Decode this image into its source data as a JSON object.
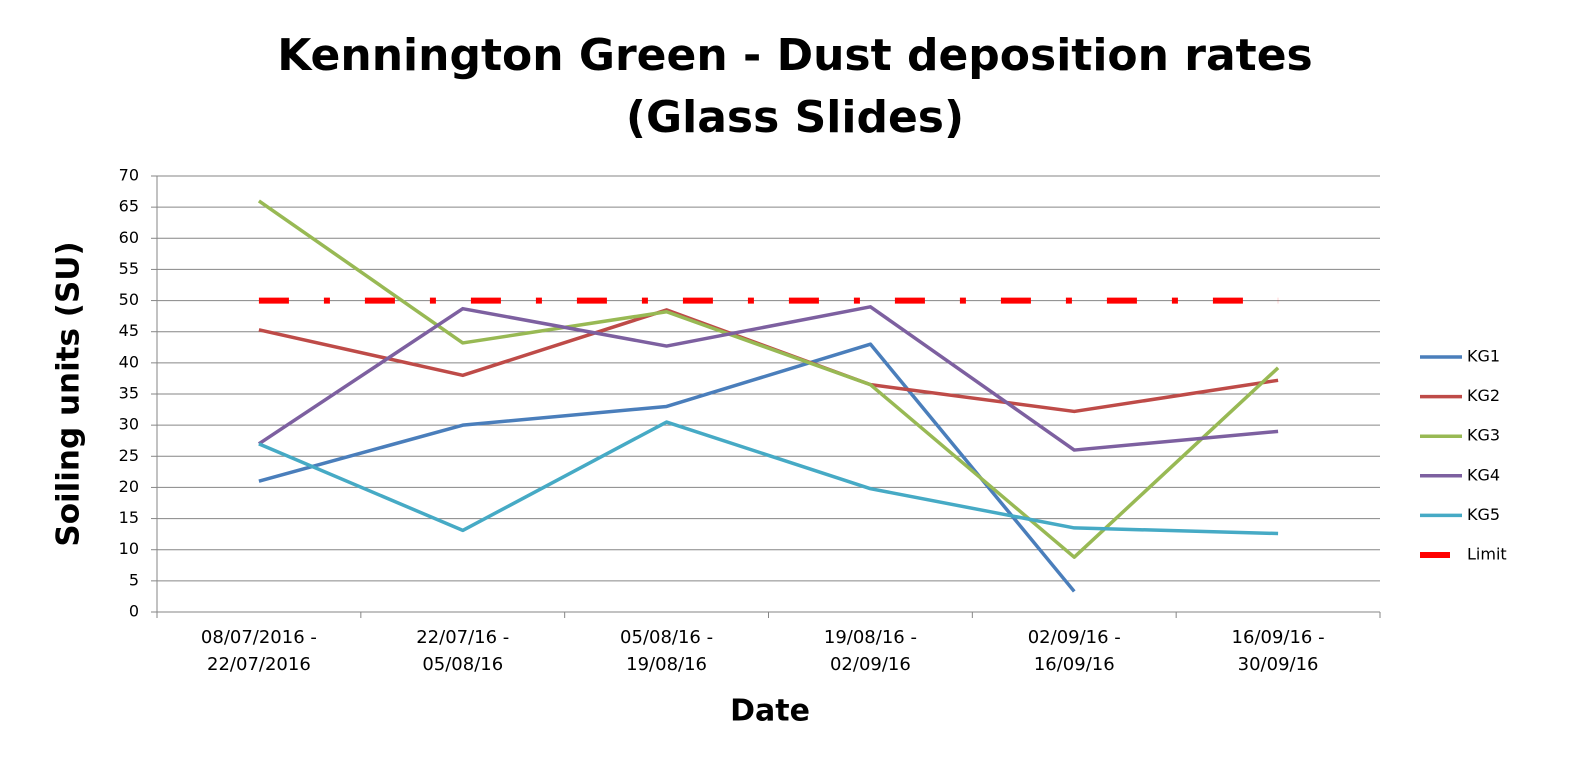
{
  "chart_data": {
    "type": "line",
    "title": "Kennington Green - Dust deposition rates\n(Glass Slides)",
    "x_label": "Date",
    "y_label": "Soiling units (SU)",
    "categories": [
      "08/07/2016 -\n22/07/2016",
      "22/07/16 -\n05/08/16",
      "05/08/16 -\n19/08/16",
      "19/08/16 -\n02/09/16",
      "02/09/16 -\n16/09/16",
      "16/09/16 -\n30/09/16"
    ],
    "series": [
      {
        "name": "KG1",
        "color": "#4a7ebb",
        "values": [
          21,
          30,
          33,
          43,
          3.3,
          null
        ]
      },
      {
        "name": "KG2",
        "color": "#be4b48",
        "values": [
          45.3,
          38,
          48.5,
          36.5,
          32.2,
          37.2
        ]
      },
      {
        "name": "KG3",
        "color": "#98b954",
        "values": [
          66,
          43.2,
          48.2,
          36.5,
          8.8,
          39.2
        ]
      },
      {
        "name": "KG4",
        "color": "#7d60a0",
        "values": [
          27,
          48.7,
          42.7,
          49,
          26,
          29
        ]
      },
      {
        "name": "KG5",
        "color": "#46aac5",
        "values": [
          27,
          13.1,
          30.5,
          19.8,
          13.5,
          12.6
        ]
      },
      {
        "name": "Limit",
        "color": "#ff0000",
        "line_style": "dash-dot",
        "values": [
          50,
          50,
          50,
          50,
          50,
          50
        ]
      }
    ],
    "ylim": [
      0,
      70
    ],
    "yticks": [
      0,
      5,
      10,
      15,
      20,
      25,
      30,
      35,
      40,
      45,
      50,
      55,
      60,
      65,
      70
    ],
    "grid": true,
    "legend": "right"
  }
}
